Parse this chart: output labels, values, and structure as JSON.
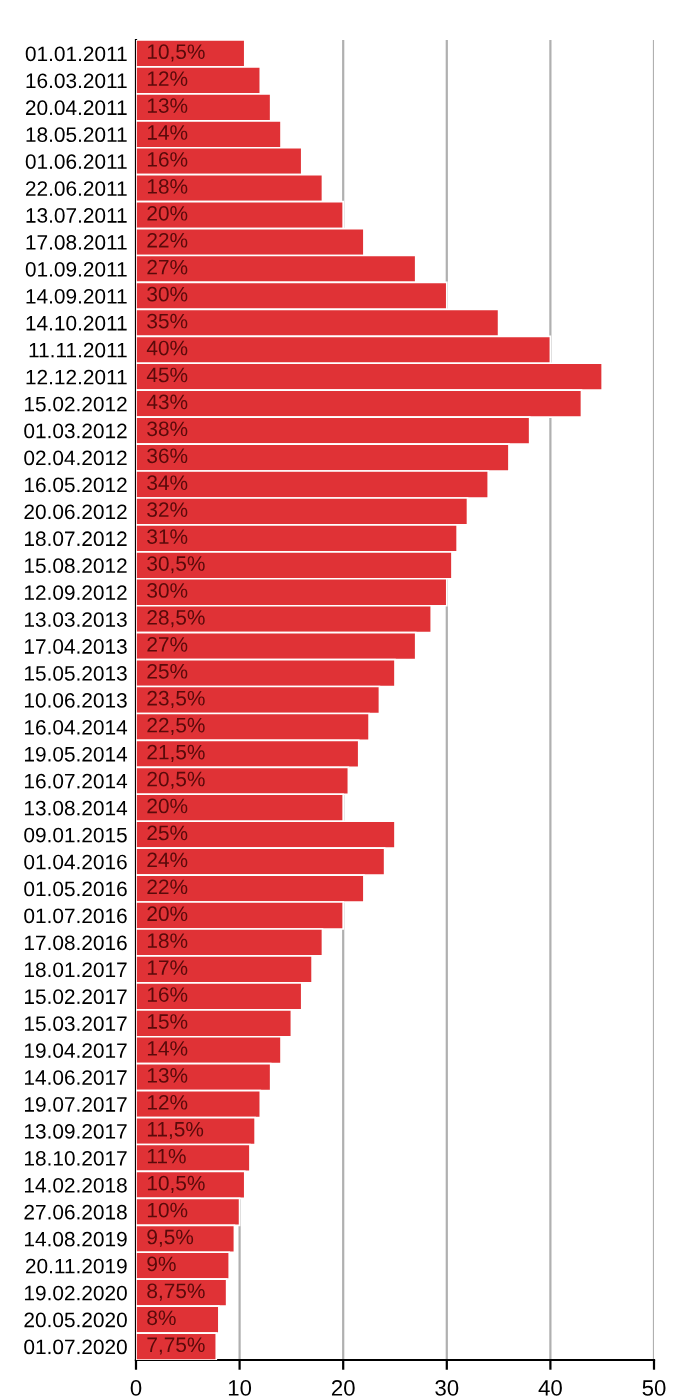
{
  "chart_data": {
    "type": "bar",
    "orientation": "horizontal",
    "categories": [
      "01.01.2011",
      "16.03.2011",
      "20.04.2011",
      "18.05.2011",
      "01.06.2011",
      "22.06.2011",
      "13.07.2011",
      "17.08.2011",
      "01.09.2011",
      "14.09.2011",
      "14.10.2011",
      "11.11.2011",
      "12.12.2011",
      "15.02.2012",
      "01.03.2012",
      "02.04.2012",
      "16.05.2012",
      "20.06.2012",
      "18.07.2012",
      "15.08.2012",
      "12.09.2012",
      "13.03.2013",
      "17.04.2013",
      "15.05.2013",
      "10.06.2013",
      "16.04.2014",
      "19.05.2014",
      "16.07.2014",
      "13.08.2014",
      "09.01.2015",
      "01.04.2016",
      "01.05.2016",
      "01.07.2016",
      "17.08.2016",
      "18.01.2017",
      "15.02.2017",
      "15.03.2017",
      "19.04.2017",
      "14.06.2017",
      "19.07.2017",
      "13.09.2017",
      "18.10.2017",
      "14.02.2018",
      "27.06.2018",
      "14.08.2019",
      "20.11.2019",
      "19.02.2020",
      "20.05.2020",
      "01.07.2020"
    ],
    "values": [
      10.5,
      12,
      13,
      14,
      16,
      18,
      20,
      22,
      27,
      30,
      35,
      40,
      45,
      43,
      38,
      36,
      34,
      32,
      31,
      30.5,
      30,
      28.5,
      27,
      25,
      23.5,
      22.5,
      21.5,
      20.5,
      20,
      25,
      24,
      22,
      20,
      18,
      17,
      16,
      15,
      14,
      13,
      12,
      11.5,
      11,
      10.5,
      10,
      9.5,
      9,
      8.75,
      8,
      7.75
    ],
    "value_labels": [
      "10,5%",
      "12%",
      "13%",
      "14%",
      "16%",
      "18%",
      "20%",
      "22%",
      "27%",
      "30%",
      "35%",
      "40%",
      "45%",
      "43%",
      "38%",
      "36%",
      "34%",
      "32%",
      "31%",
      "30,5%",
      "30%",
      "28,5%",
      "27%",
      "25%",
      "23,5%",
      "22,5%",
      "21,5%",
      "20,5%",
      "20%",
      "25%",
      "24%",
      "22%",
      "20%",
      "18%",
      "17%",
      "16%",
      "15%",
      "14%",
      "13%",
      "12%",
      "11,5%",
      "11%",
      "10,5%",
      "10%",
      "9,5%",
      "9%",
      "8,75%",
      "8%",
      "7,75%"
    ],
    "color": "#e03236",
    "xlim": [
      0,
      50
    ],
    "xticks": [
      0,
      10,
      20,
      30,
      40,
      50
    ],
    "grid": "x"
  }
}
